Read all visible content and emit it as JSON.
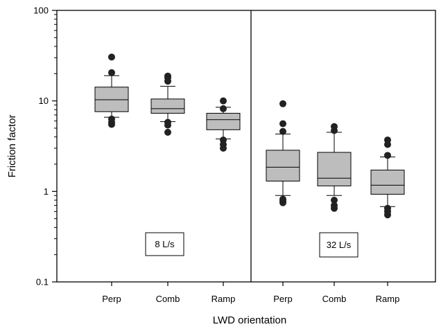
{
  "chart_data": {
    "type": "box",
    "title": "",
    "xlabel": "LWD orientation",
    "ylabel": "Friction factor",
    "yscale": "log",
    "ylim": [
      0.1,
      100
    ],
    "yticks": [
      0.1,
      1,
      10,
      100
    ],
    "ytick_labels": [
      "0.1",
      "1",
      "10",
      "100"
    ],
    "grid": false,
    "box_fill_color": "#bdbdbd",
    "outlier_color": "#222222",
    "panels": [
      {
        "label": "8 L/s",
        "boxes": [
          {
            "category": "Perp",
            "whisker_low": 6.6,
            "q1": 7.6,
            "median": 10.3,
            "q3": 14.2,
            "whisker_high": 19.0,
            "outliers": [
              30.5,
              20.5,
              6.3,
              5.8,
              5.5
            ]
          },
          {
            "category": "Comb",
            "whisker_low": 5.9,
            "q1": 7.3,
            "median": 8.2,
            "q3": 10.5,
            "whisker_high": 14.5,
            "outliers": [
              18.8,
              18.0,
              16.5,
              5.8,
              5.4,
              4.5
            ]
          },
          {
            "category": "Ramp",
            "whisker_low": 3.8,
            "q1": 4.8,
            "median": 6.2,
            "q3": 7.3,
            "whisker_high": 8.5,
            "outliers": [
              10.0,
              8.2,
              3.7,
              3.3,
              3.0
            ]
          }
        ]
      },
      {
        "label": "32 L/s",
        "boxes": [
          {
            "category": "Perp",
            "whisker_low": 0.9,
            "q1": 1.3,
            "median": 1.85,
            "q3": 2.85,
            "whisker_high": 4.3,
            "outliers": [
              9.3,
              5.6,
              4.6,
              0.82,
              0.78,
              0.75
            ]
          },
          {
            "category": "Comb",
            "whisker_low": 0.9,
            "q1": 1.15,
            "median": 1.4,
            "q3": 2.7,
            "whisker_high": 4.5,
            "outliers": [
              5.2,
              4.7,
              0.8,
              0.7,
              0.65
            ]
          },
          {
            "category": "Ramp",
            "whisker_low": 0.68,
            "q1": 0.93,
            "median": 1.17,
            "q3": 1.72,
            "whisker_high": 2.4,
            "outliers": [
              3.7,
              3.3,
              2.5,
              0.65,
              0.6,
              0.55
            ]
          }
        ]
      }
    ]
  }
}
